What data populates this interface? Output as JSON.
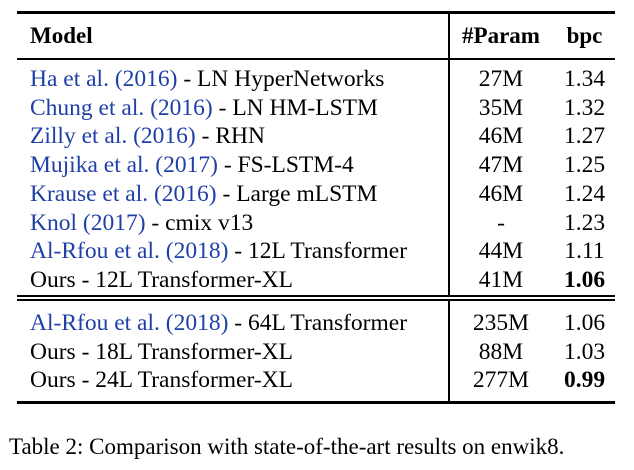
{
  "table": {
    "headers": {
      "model": "Model",
      "param": "#Param",
      "bpc": "bpc"
    },
    "group1": [
      {
        "cite": "Ha et al. (2016)",
        "rest": " - LN HyperNetworks",
        "param": "27M",
        "bpc": "1.34",
        "bold": false
      },
      {
        "cite": "Chung et al. (2016)",
        "rest": " - LN HM-LSTM",
        "param": "35M",
        "bpc": "1.32",
        "bold": false
      },
      {
        "cite": "Zilly et al. (2016)",
        "rest": " - RHN",
        "param": "46M",
        "bpc": "1.27",
        "bold": false
      },
      {
        "cite": "Mujika et al. (2017)",
        "rest": " - FS-LSTM-4",
        "param": "47M",
        "bpc": "1.25",
        "bold": false
      },
      {
        "cite": "Krause et al. (2016)",
        "rest": " - Large mLSTM",
        "param": "46M",
        "bpc": "1.24",
        "bold": false
      },
      {
        "cite": "Knol (2017)",
        "rest": " - cmix v13",
        "param": "-",
        "bpc": "1.23",
        "bold": false
      },
      {
        "cite": "Al-Rfou et al. (2018)",
        "rest": " - 12L Transformer",
        "param": "44M",
        "bpc": "1.11",
        "bold": false
      },
      {
        "cite": "",
        "rest": "Ours - 12L Transformer-XL",
        "param": "41M",
        "bpc": "1.06",
        "bold": true
      }
    ],
    "group2": [
      {
        "cite": "Al-Rfou et al. (2018)",
        "rest": " - 64L Transformer",
        "param": "235M",
        "bpc": "1.06",
        "bold": false
      },
      {
        "cite": "",
        "rest": "Ours - 18L Transformer-XL",
        "param": "88M",
        "bpc": "1.03",
        "bold": false
      },
      {
        "cite": "",
        "rest": "Ours - 24L Transformer-XL",
        "param": "277M",
        "bpc": "0.99",
        "bold": true
      }
    ]
  },
  "caption": {
    "label": "Table 2:",
    "text": " Comparison with state-of-the-art results on enwik8."
  },
  "colors": {
    "citation": "#1f3fa8",
    "text": "#000000"
  }
}
